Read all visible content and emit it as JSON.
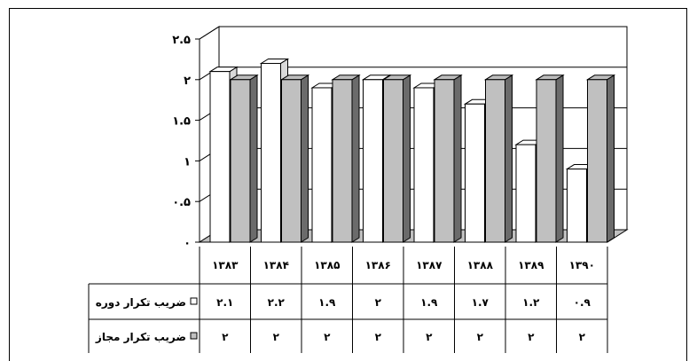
{
  "chart_data": {
    "type": "bar",
    "three_d": true,
    "categories": [
      "۱۳۸۳",
      "۱۳۸۴",
      "۱۳۸۵",
      "۱۳۸۶",
      "۱۳۸۷",
      "۱۳۸۸",
      "۱۳۸۹",
      "۱۳۹۰"
    ],
    "series": [
      {
        "name": "ضریب تکرار دوره",
        "values": [
          2.1,
          2.2,
          1.9,
          2,
          1.9,
          1.7,
          1.2,
          0.9
        ],
        "value_labels": [
          "۲.۱",
          "۲.۲",
          "۱.۹",
          "۲",
          "۱.۹",
          "۱.۷",
          "۱.۲",
          "۰.۹"
        ],
        "color": "#ffffff"
      },
      {
        "name": "ضریب تکرار مجاز",
        "values": [
          2,
          2,
          2,
          2,
          2,
          2,
          2,
          2
        ],
        "value_labels": [
          "۲",
          "۲",
          "۲",
          "۲",
          "۲",
          "۲",
          "۲",
          "۲"
        ],
        "color": "#c0c0c0"
      }
    ],
    "yticks": [
      0,
      0.5,
      1,
      1.5,
      2,
      2.5
    ],
    "ytick_labels": [
      "۰",
      "۰.۵",
      "۱",
      "۱.۵",
      "۲",
      "۲.۵"
    ],
    "ylim": [
      0,
      2.5
    ],
    "grid": true,
    "legend": "data-table-left",
    "data_table": true
  }
}
